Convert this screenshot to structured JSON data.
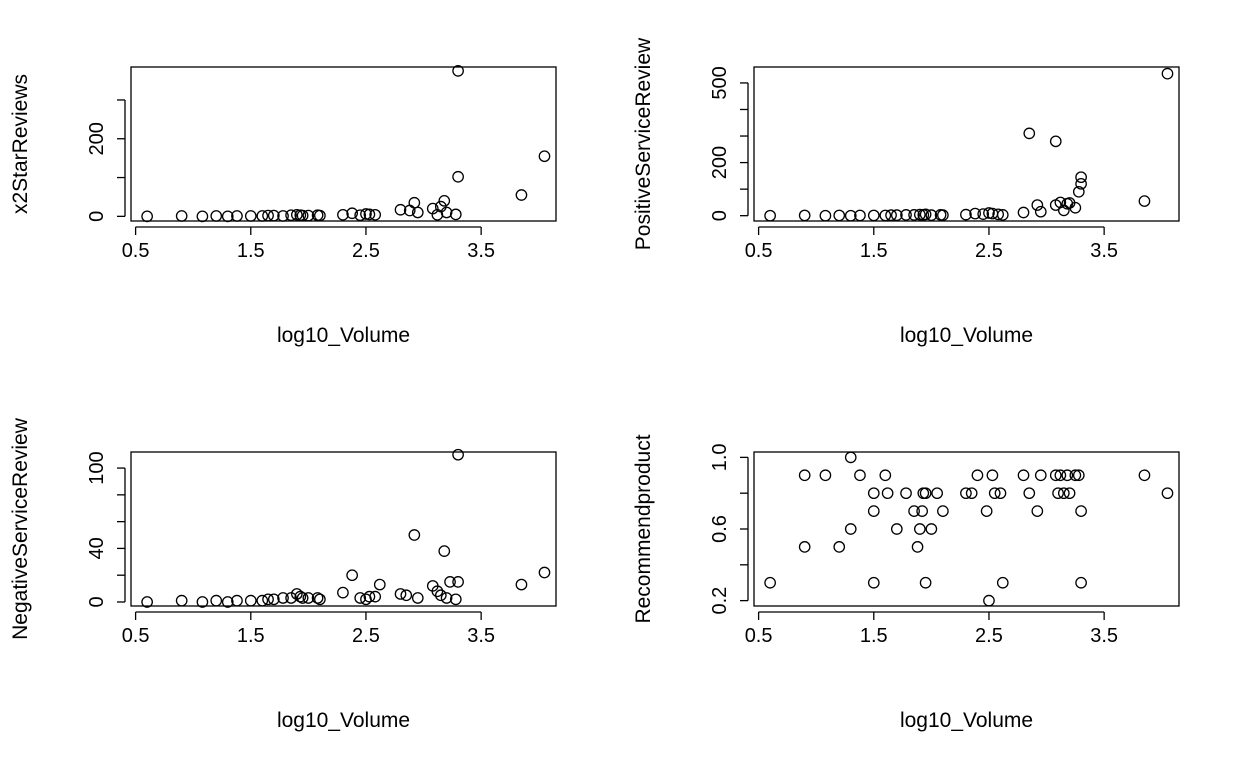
{
  "chart_data": [
    {
      "type": "scatter",
      "xlabel": "log10_Volume",
      "ylabel": "x2StarReviews",
      "xticks": [
        "0.5",
        "1.5",
        "2.5",
        "3.5"
      ],
      "yticks": [
        "0",
        "100",
        "200",
        "300"
      ],
      "ytick_labels": [
        "0",
        "",
        "200",
        ""
      ],
      "xlim": [
        0.46,
        4.15
      ],
      "ylim": [
        -12,
        385
      ],
      "x": [
        0.6,
        0.9,
        1.08,
        1.2,
        1.3,
        1.38,
        1.5,
        1.6,
        1.65,
        1.7,
        1.78,
        1.85,
        1.9,
        1.93,
        1.95,
        2.0,
        2.08,
        2.1,
        2.3,
        2.38,
        2.45,
        2.5,
        2.53,
        2.58,
        2.8,
        2.88,
        2.92,
        2.95,
        3.08,
        3.12,
        3.15,
        3.18,
        3.2,
        3.28,
        3.3,
        3.3,
        3.85,
        4.05
      ],
      "y": [
        0,
        1,
        0,
        1,
        0,
        1,
        1,
        1,
        2,
        2,
        1,
        3,
        4,
        3,
        2,
        2,
        3,
        2,
        4,
        8,
        3,
        6,
        5,
        4,
        17,
        15,
        35,
        10,
        20,
        4,
        25,
        40,
        10,
        5,
        375,
        102,
        55,
        155
      ]
    },
    {
      "type": "scatter",
      "xlabel": "log10_Volume",
      "ylabel": "PositiveServiceReview",
      "xticks": [
        "0.5",
        "1.5",
        "2.5",
        "3.5"
      ],
      "yticks": [
        "0",
        "100",
        "200",
        "300",
        "400",
        "500"
      ],
      "ytick_labels": [
        "0",
        "",
        "200",
        "",
        "",
        "500"
      ],
      "xlim": [
        0.46,
        4.15
      ],
      "ylim": [
        -20,
        560
      ],
      "x": [
        0.6,
        0.9,
        1.08,
        1.2,
        1.3,
        1.38,
        1.5,
        1.6,
        1.65,
        1.7,
        1.78,
        1.85,
        1.9,
        1.93,
        1.95,
        2.0,
        2.08,
        2.1,
        2.3,
        2.38,
        2.45,
        2.5,
        2.53,
        2.58,
        2.62,
        2.8,
        2.85,
        2.92,
        2.95,
        3.08,
        3.08,
        3.12,
        3.15,
        3.18,
        3.2,
        3.25,
        3.28,
        3.3,
        3.3,
        3.85,
        4.05
      ],
      "y": [
        0,
        1,
        0,
        1,
        0,
        1,
        1,
        1,
        2,
        2,
        3,
        3,
        4,
        3,
        5,
        2,
        3,
        2,
        4,
        8,
        6,
        10,
        8,
        5,
        3,
        12,
        310,
        40,
        15,
        280,
        40,
        50,
        20,
        45,
        48,
        30,
        90,
        145,
        120,
        55,
        535
      ]
    },
    {
      "type": "scatter",
      "xlabel": "log10_Volume",
      "ylabel": "NegativeServiceReview",
      "xticks": [
        "0.5",
        "1.5",
        "2.5",
        "3.5"
      ],
      "yticks": [
        "0",
        "20",
        "40",
        "60",
        "80",
        "100"
      ],
      "ytick_labels": [
        "0",
        "",
        "40",
        "",
        "",
        "100"
      ],
      "xlim": [
        0.46,
        4.15
      ],
      "ylim": [
        -3,
        112
      ],
      "x": [
        0.6,
        0.9,
        1.08,
        1.2,
        1.3,
        1.38,
        1.5,
        1.6,
        1.65,
        1.7,
        1.78,
        1.85,
        1.9,
        1.93,
        1.95,
        2.0,
        2.08,
        2.1,
        2.3,
        2.38,
        2.45,
        2.5,
        2.53,
        2.58,
        2.62,
        2.8,
        2.85,
        2.92,
        2.95,
        3.08,
        3.12,
        3.15,
        3.18,
        3.2,
        3.23,
        3.28,
        3.3,
        3.3,
        3.85,
        4.05
      ],
      "y": [
        0,
        1,
        0,
        1,
        0,
        1,
        1,
        1,
        2,
        2,
        3,
        3,
        6,
        4,
        3,
        3,
        3,
        2,
        7,
        20,
        3,
        2,
        4,
        4,
        13,
        6,
        5,
        50,
        3,
        12,
        8,
        5,
        38,
        3,
        15,
        2,
        110,
        15,
        13,
        22
      ]
    },
    {
      "type": "scatter",
      "xlabel": "log10_Volume",
      "ylabel": "Recommendproduct",
      "xticks": [
        "0.5",
        "1.5",
        "2.5",
        "3.5"
      ],
      "yticks": [
        "0.2",
        "0.4",
        "0.6",
        "0.8",
        "1.0"
      ],
      "ytick_labels": [
        "0.2",
        "",
        "0.6",
        "",
        "1.0"
      ],
      "xlim": [
        0.46,
        4.15
      ],
      "ylim": [
        0.17,
        1.03
      ],
      "x": [
        0.6,
        0.9,
        0.9,
        1.08,
        1.2,
        1.3,
        1.3,
        1.38,
        1.5,
        1.5,
        1.5,
        1.6,
        1.62,
        1.7,
        1.78,
        1.85,
        1.88,
        1.9,
        1.92,
        1.93,
        1.95,
        1.95,
        2.0,
        2.05,
        2.1,
        2.3,
        2.35,
        2.4,
        2.48,
        2.5,
        2.53,
        2.55,
        2.6,
        2.62,
        2.8,
        2.85,
        2.92,
        2.95,
        3.08,
        3.1,
        3.12,
        3.15,
        3.18,
        3.2,
        3.25,
        3.28,
        3.3,
        3.3,
        3.85,
        4.05
      ],
      "y": [
        0.3,
        0.5,
        0.9,
        0.9,
        0.5,
        1.0,
        0.6,
        0.9,
        0.8,
        0.7,
        0.3,
        0.9,
        0.8,
        0.6,
        0.8,
        0.7,
        0.5,
        0.6,
        0.7,
        0.8,
        0.8,
        0.3,
        0.6,
        0.8,
        0.7,
        0.8,
        0.8,
        0.9,
        0.7,
        0.2,
        0.9,
        0.8,
        0.8,
        0.3,
        0.9,
        0.8,
        0.7,
        0.9,
        0.9,
        0.8,
        0.9,
        0.8,
        0.9,
        0.8,
        0.9,
        0.9,
        0.3,
        0.7,
        0.9,
        0.8
      ]
    }
  ]
}
